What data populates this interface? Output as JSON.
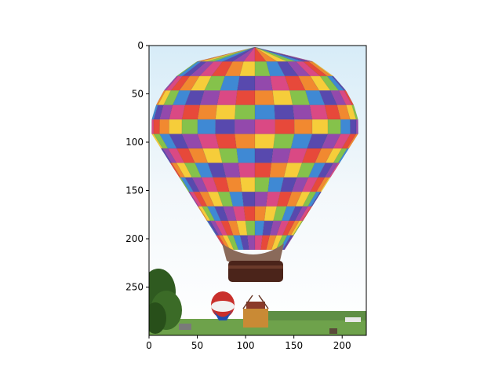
{
  "chart_data": {
    "type": "image",
    "title": "",
    "xlabel": "",
    "ylabel": "",
    "image_extent": {
      "x": [
        0,
        225
      ],
      "y": [
        300,
        0
      ]
    },
    "xlim": [
      0,
      225
    ],
    "ylim": [
      300,
      0
    ],
    "xticks": [
      0,
      50,
      100,
      150,
      200
    ],
    "yticks": [
      0,
      50,
      100,
      150,
      200,
      250
    ],
    "grid": false,
    "legend": "none",
    "image_description_tokens": [
      "hot-air-balloon",
      "rainbow-checkered-envelope",
      "blue-sky",
      "green-field",
      "tree",
      "small-balloon"
    ],
    "colors": {
      "sky": "#cfe8f7",
      "field": "#6ea24b",
      "tree": "#2f5a20",
      "basket": "#5a2e1c",
      "palette": [
        "#e53a2a",
        "#f07f1f",
        "#f6c92a",
        "#7bbd3c",
        "#2f7fd1",
        "#4a3aa8",
        "#8a3aa5",
        "#d73a7a"
      ]
    }
  }
}
